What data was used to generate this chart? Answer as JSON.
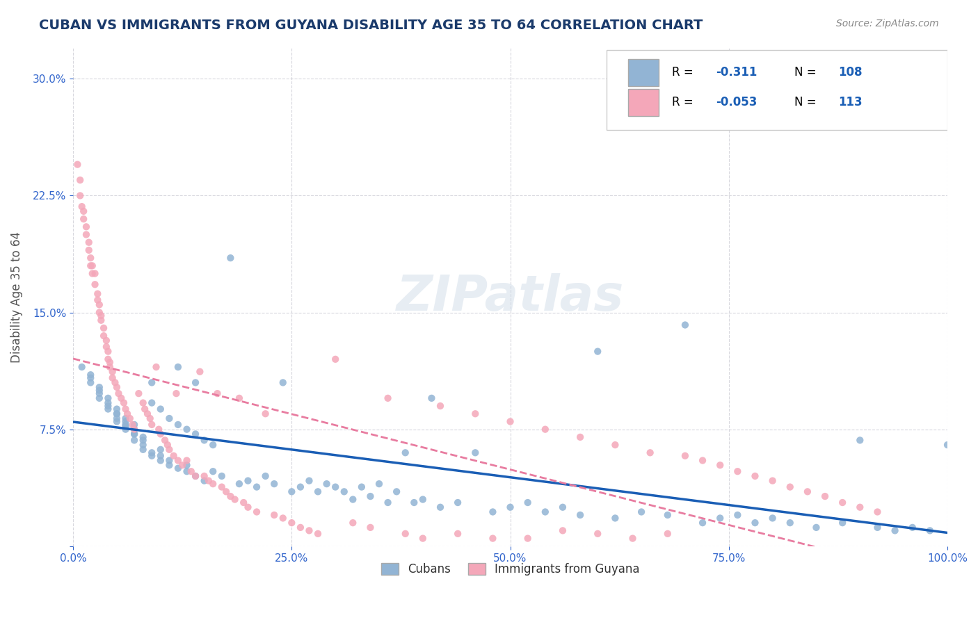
{
  "title": "CUBAN VS IMMIGRANTS FROM GUYANA DISABILITY AGE 35 TO 64 CORRELATION CHART",
  "source_text": "Source: ZipAtlas.com",
  "xlabel": "",
  "ylabel": "Disability Age 35 to 64",
  "xlim": [
    0.0,
    1.0
  ],
  "ylim": [
    0.0,
    0.32
  ],
  "x_ticks": [
    0.0,
    0.25,
    0.5,
    0.75,
    1.0
  ],
  "x_tick_labels": [
    "0.0%",
    "25.0%",
    "50.0%",
    "75.0%",
    "100.0%"
  ],
  "y_ticks": [
    0.0,
    0.075,
    0.15,
    0.225,
    0.3
  ],
  "y_tick_labels": [
    "",
    "7.5%",
    "15.0%",
    "22.5%",
    "30.0%"
  ],
  "legend_r1": "R =  -0.311   N = 108",
  "legend_r2": "R =  -0.053   N = 113",
  "r1": -0.311,
  "n1": 108,
  "r2": -0.053,
  "n2": 113,
  "blue_color": "#92b4d4",
  "pink_color": "#f4a7b9",
  "blue_line_color": "#1a5eb5",
  "pink_line_color": "#e87ca0",
  "grid_color": "#c8c8d0",
  "background_color": "#ffffff",
  "watermark_text": "ZIPatlas",
  "title_color": "#1a3a6b",
  "title_fontsize": 14,
  "axis_label_color": "#555555",
  "tick_color": "#3366cc",
  "seed_cubans": 42,
  "seed_guyana": 99,
  "cubans_scatter": {
    "x": [
      0.01,
      0.02,
      0.02,
      0.02,
      0.03,
      0.03,
      0.03,
      0.03,
      0.04,
      0.04,
      0.04,
      0.04,
      0.05,
      0.05,
      0.05,
      0.05,
      0.05,
      0.06,
      0.06,
      0.06,
      0.06,
      0.06,
      0.07,
      0.07,
      0.07,
      0.07,
      0.07,
      0.08,
      0.08,
      0.08,
      0.08,
      0.09,
      0.09,
      0.09,
      0.1,
      0.1,
      0.1,
      0.11,
      0.11,
      0.12,
      0.12,
      0.13,
      0.13,
      0.14,
      0.14,
      0.15,
      0.16,
      0.17,
      0.18,
      0.19,
      0.2,
      0.21,
      0.22,
      0.23,
      0.24,
      0.25,
      0.26,
      0.27,
      0.28,
      0.29,
      0.3,
      0.31,
      0.32,
      0.33,
      0.34,
      0.35,
      0.36,
      0.37,
      0.38,
      0.39,
      0.4,
      0.41,
      0.42,
      0.44,
      0.46,
      0.48,
      0.5,
      0.52,
      0.54,
      0.56,
      0.58,
      0.6,
      0.62,
      0.65,
      0.68,
      0.7,
      0.72,
      0.74,
      0.76,
      0.78,
      0.8,
      0.82,
      0.85,
      0.88,
      0.9,
      0.92,
      0.94,
      0.96,
      0.98,
      1.0,
      0.09,
      0.1,
      0.11,
      0.12,
      0.13,
      0.14,
      0.15,
      0.16
    ],
    "y": [
      0.115,
      0.105,
      0.11,
      0.108,
      0.1,
      0.098,
      0.102,
      0.095,
      0.092,
      0.088,
      0.095,
      0.09,
      0.085,
      0.082,
      0.088,
      0.085,
      0.08,
      0.078,
      0.082,
      0.075,
      0.08,
      0.077,
      0.072,
      0.078,
      0.075,
      0.068,
      0.072,
      0.065,
      0.07,
      0.068,
      0.062,
      0.105,
      0.06,
      0.058,
      0.055,
      0.062,
      0.058,
      0.052,
      0.055,
      0.05,
      0.115,
      0.048,
      0.052,
      0.045,
      0.105,
      0.042,
      0.048,
      0.045,
      0.185,
      0.04,
      0.042,
      0.038,
      0.045,
      0.04,
      0.105,
      0.035,
      0.038,
      0.042,
      0.035,
      0.04,
      0.038,
      0.035,
      0.03,
      0.038,
      0.032,
      0.04,
      0.028,
      0.035,
      0.06,
      0.028,
      0.03,
      0.095,
      0.025,
      0.028,
      0.06,
      0.022,
      0.025,
      0.028,
      0.022,
      0.025,
      0.02,
      0.125,
      0.018,
      0.022,
      0.02,
      0.142,
      0.015,
      0.018,
      0.02,
      0.015,
      0.018,
      0.015,
      0.012,
      0.015,
      0.068,
      0.012,
      0.01,
      0.012,
      0.01,
      0.065,
      0.092,
      0.088,
      0.082,
      0.078,
      0.075,
      0.072,
      0.068,
      0.065
    ]
  },
  "guyana_scatter": {
    "x": [
      0.005,
      0.008,
      0.008,
      0.01,
      0.012,
      0.012,
      0.015,
      0.015,
      0.018,
      0.018,
      0.02,
      0.02,
      0.022,
      0.022,
      0.025,
      0.025,
      0.028,
      0.028,
      0.03,
      0.03,
      0.032,
      0.032,
      0.035,
      0.035,
      0.038,
      0.038,
      0.04,
      0.04,
      0.042,
      0.042,
      0.045,
      0.045,
      0.048,
      0.05,
      0.052,
      0.055,
      0.058,
      0.06,
      0.062,
      0.065,
      0.068,
      0.07,
      0.075,
      0.08,
      0.082,
      0.085,
      0.088,
      0.09,
      0.095,
      0.098,
      0.1,
      0.105,
      0.108,
      0.11,
      0.115,
      0.118,
      0.12,
      0.125,
      0.13,
      0.135,
      0.14,
      0.145,
      0.15,
      0.155,
      0.16,
      0.165,
      0.17,
      0.175,
      0.18,
      0.185,
      0.19,
      0.195,
      0.2,
      0.21,
      0.22,
      0.23,
      0.24,
      0.25,
      0.26,
      0.27,
      0.28,
      0.3,
      0.32,
      0.34,
      0.36,
      0.38,
      0.4,
      0.42,
      0.44,
      0.46,
      0.48,
      0.5,
      0.52,
      0.54,
      0.56,
      0.58,
      0.6,
      0.62,
      0.64,
      0.66,
      0.68,
      0.7,
      0.72,
      0.74,
      0.76,
      0.78,
      0.8,
      0.82,
      0.84,
      0.86,
      0.88,
      0.9,
      0.92
    ],
    "y": [
      0.245,
      0.235,
      0.225,
      0.218,
      0.215,
      0.21,
      0.205,
      0.2,
      0.195,
      0.19,
      0.185,
      0.18,
      0.175,
      0.18,
      0.175,
      0.168,
      0.162,
      0.158,
      0.155,
      0.15,
      0.145,
      0.148,
      0.14,
      0.135,
      0.132,
      0.128,
      0.125,
      0.12,
      0.118,
      0.115,
      0.112,
      0.108,
      0.105,
      0.102,
      0.098,
      0.095,
      0.092,
      0.088,
      0.085,
      0.082,
      0.078,
      0.075,
      0.098,
      0.092,
      0.088,
      0.085,
      0.082,
      0.078,
      0.115,
      0.075,
      0.072,
      0.068,
      0.065,
      0.062,
      0.058,
      0.098,
      0.055,
      0.052,
      0.055,
      0.048,
      0.045,
      0.112,
      0.045,
      0.042,
      0.04,
      0.098,
      0.038,
      0.035,
      0.032,
      0.03,
      0.095,
      0.028,
      0.025,
      0.022,
      0.085,
      0.02,
      0.018,
      0.015,
      0.012,
      0.01,
      0.008,
      0.12,
      0.015,
      0.012,
      0.095,
      0.008,
      0.005,
      0.09,
      0.008,
      0.085,
      0.005,
      0.08,
      0.005,
      0.075,
      0.01,
      0.07,
      0.008,
      0.065,
      0.005,
      0.06,
      0.008,
      0.058,
      0.055,
      0.052,
      0.048,
      0.045,
      0.042,
      0.038,
      0.035,
      0.032,
      0.028,
      0.025,
      0.022
    ]
  }
}
